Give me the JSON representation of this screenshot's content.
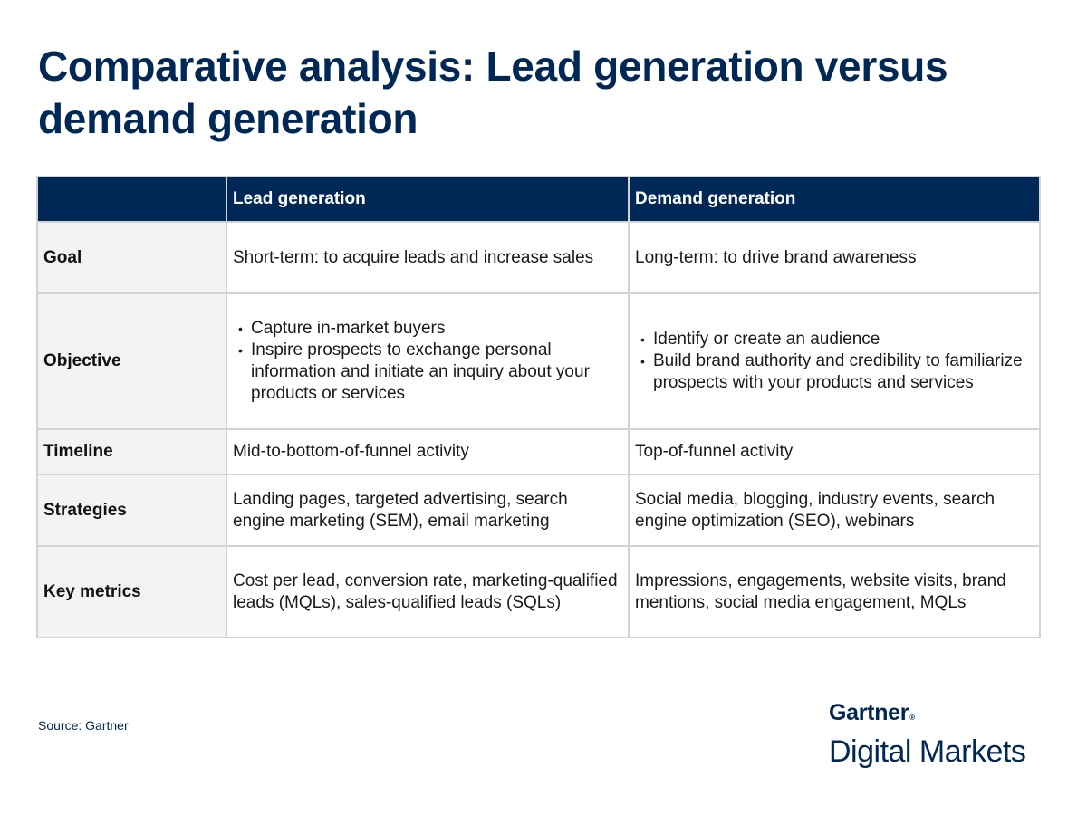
{
  "header": {
    "title": "Comparative analysis: Lead generation versus demand generation"
  },
  "table": {
    "columns": [
      "",
      "Lead generation",
      "Demand generation"
    ],
    "rows": [
      {
        "label": "Goal",
        "lead": "Short-term: to acquire leads and increase sales",
        "demand": "Long-term: to drive brand awareness"
      },
      {
        "label": "Objective",
        "lead_bullets": [
          "Capture in-market buyers",
          "Inspire prospects to exchange personal information and initiate an inquiry about your products or services"
        ],
        "demand_bullets": [
          "Identify or create an audience",
          "Build brand authority and credibility to familiarize prospects with your products and services"
        ]
      },
      {
        "label": "Timeline",
        "lead": "Mid-to-bottom-of-funnel activity",
        "demand": "Top-of-funnel activity"
      },
      {
        "label": "Strategies",
        "lead": "Landing pages, targeted advertising, search engine marketing (SEM), email marketing",
        "demand": "Social media, blogging, industry events, search engine optimization (SEO), webinars"
      },
      {
        "label": "Key metrics",
        "lead": "Cost per lead, conversion rate, marketing-qualified leads (MQLs), sales-qualified leads (SQLs)",
        "demand": "Impressions, engagements, website visits, brand mentions, social media engagement, MQLs"
      }
    ]
  },
  "footer": {
    "source": "Source: Gartner",
    "logo_brand": "Gartner",
    "logo_registered": "®",
    "logo_sub": "Digital Markets"
  },
  "colors": {
    "navy": "#002856",
    "label_bg": "#f3f3f3",
    "border": "#d3d3d3"
  }
}
